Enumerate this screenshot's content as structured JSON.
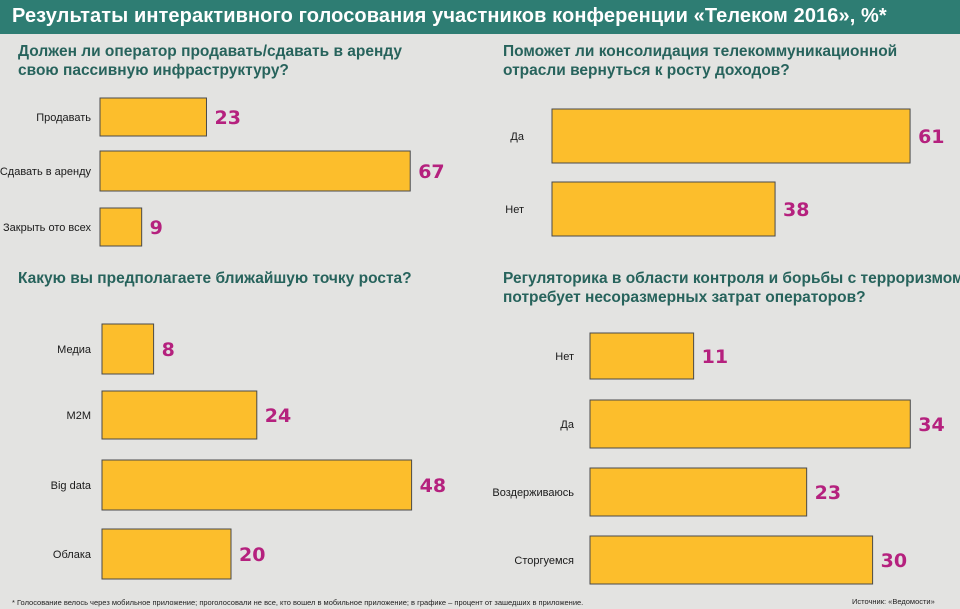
{
  "header": {
    "title": "Результаты интерактивного голосования участников конференции «Телеком 2016», %*",
    "background": "#2e7d73"
  },
  "colors": {
    "bar_fill": "#fcbe2c",
    "value_text": "#b5217e",
    "question_text": "#27635c"
  },
  "questions": [
    {
      "line1": "Должен ли оператор продавать/сдавать в аренду",
      "line2": "свою пассивную инфраструктуру?"
    },
    {
      "line1": "Поможет ли консолидация телекоммуникационной",
      "line2": "отрасли вернуться к росту доходов?"
    },
    {
      "line1": "Какую вы предполагаете ближайшую точку роста?",
      "line2": ""
    },
    {
      "line1": "Регуляторика в области контроля и борьбы с терроризмом",
      "line2": "потребует несоразмерных затрат операторов?"
    }
  ],
  "chart_data": [
    {
      "type": "bar",
      "orientation": "horizontal",
      "categories": [
        "Продавать",
        "Сдавать в аренду",
        "Закрыть ото всех"
      ],
      "values": [
        23,
        67,
        9
      ]
    },
    {
      "type": "bar",
      "orientation": "horizontal",
      "categories": [
        "Да",
        "Нет"
      ],
      "values": [
        61,
        38
      ]
    },
    {
      "type": "bar",
      "orientation": "horizontal",
      "categories": [
        "Медиа",
        "M2M",
        "Big data",
        "Облака"
      ],
      "values": [
        8,
        24,
        48,
        20
      ]
    },
    {
      "type": "bar",
      "orientation": "horizontal",
      "categories": [
        "Нет",
        "Да",
        "Воздерживаюсь",
        "Сторгуемся"
      ],
      "values": [
        11,
        34,
        23,
        30
      ]
    }
  ],
  "footer": {
    "note": "* Голосование велось через мобильное приложение; проголосовали не все, кто вошел в мобильное приложение; в графике – процент от зашедших в приложение.",
    "source": "Источник: «Ведомости»"
  }
}
